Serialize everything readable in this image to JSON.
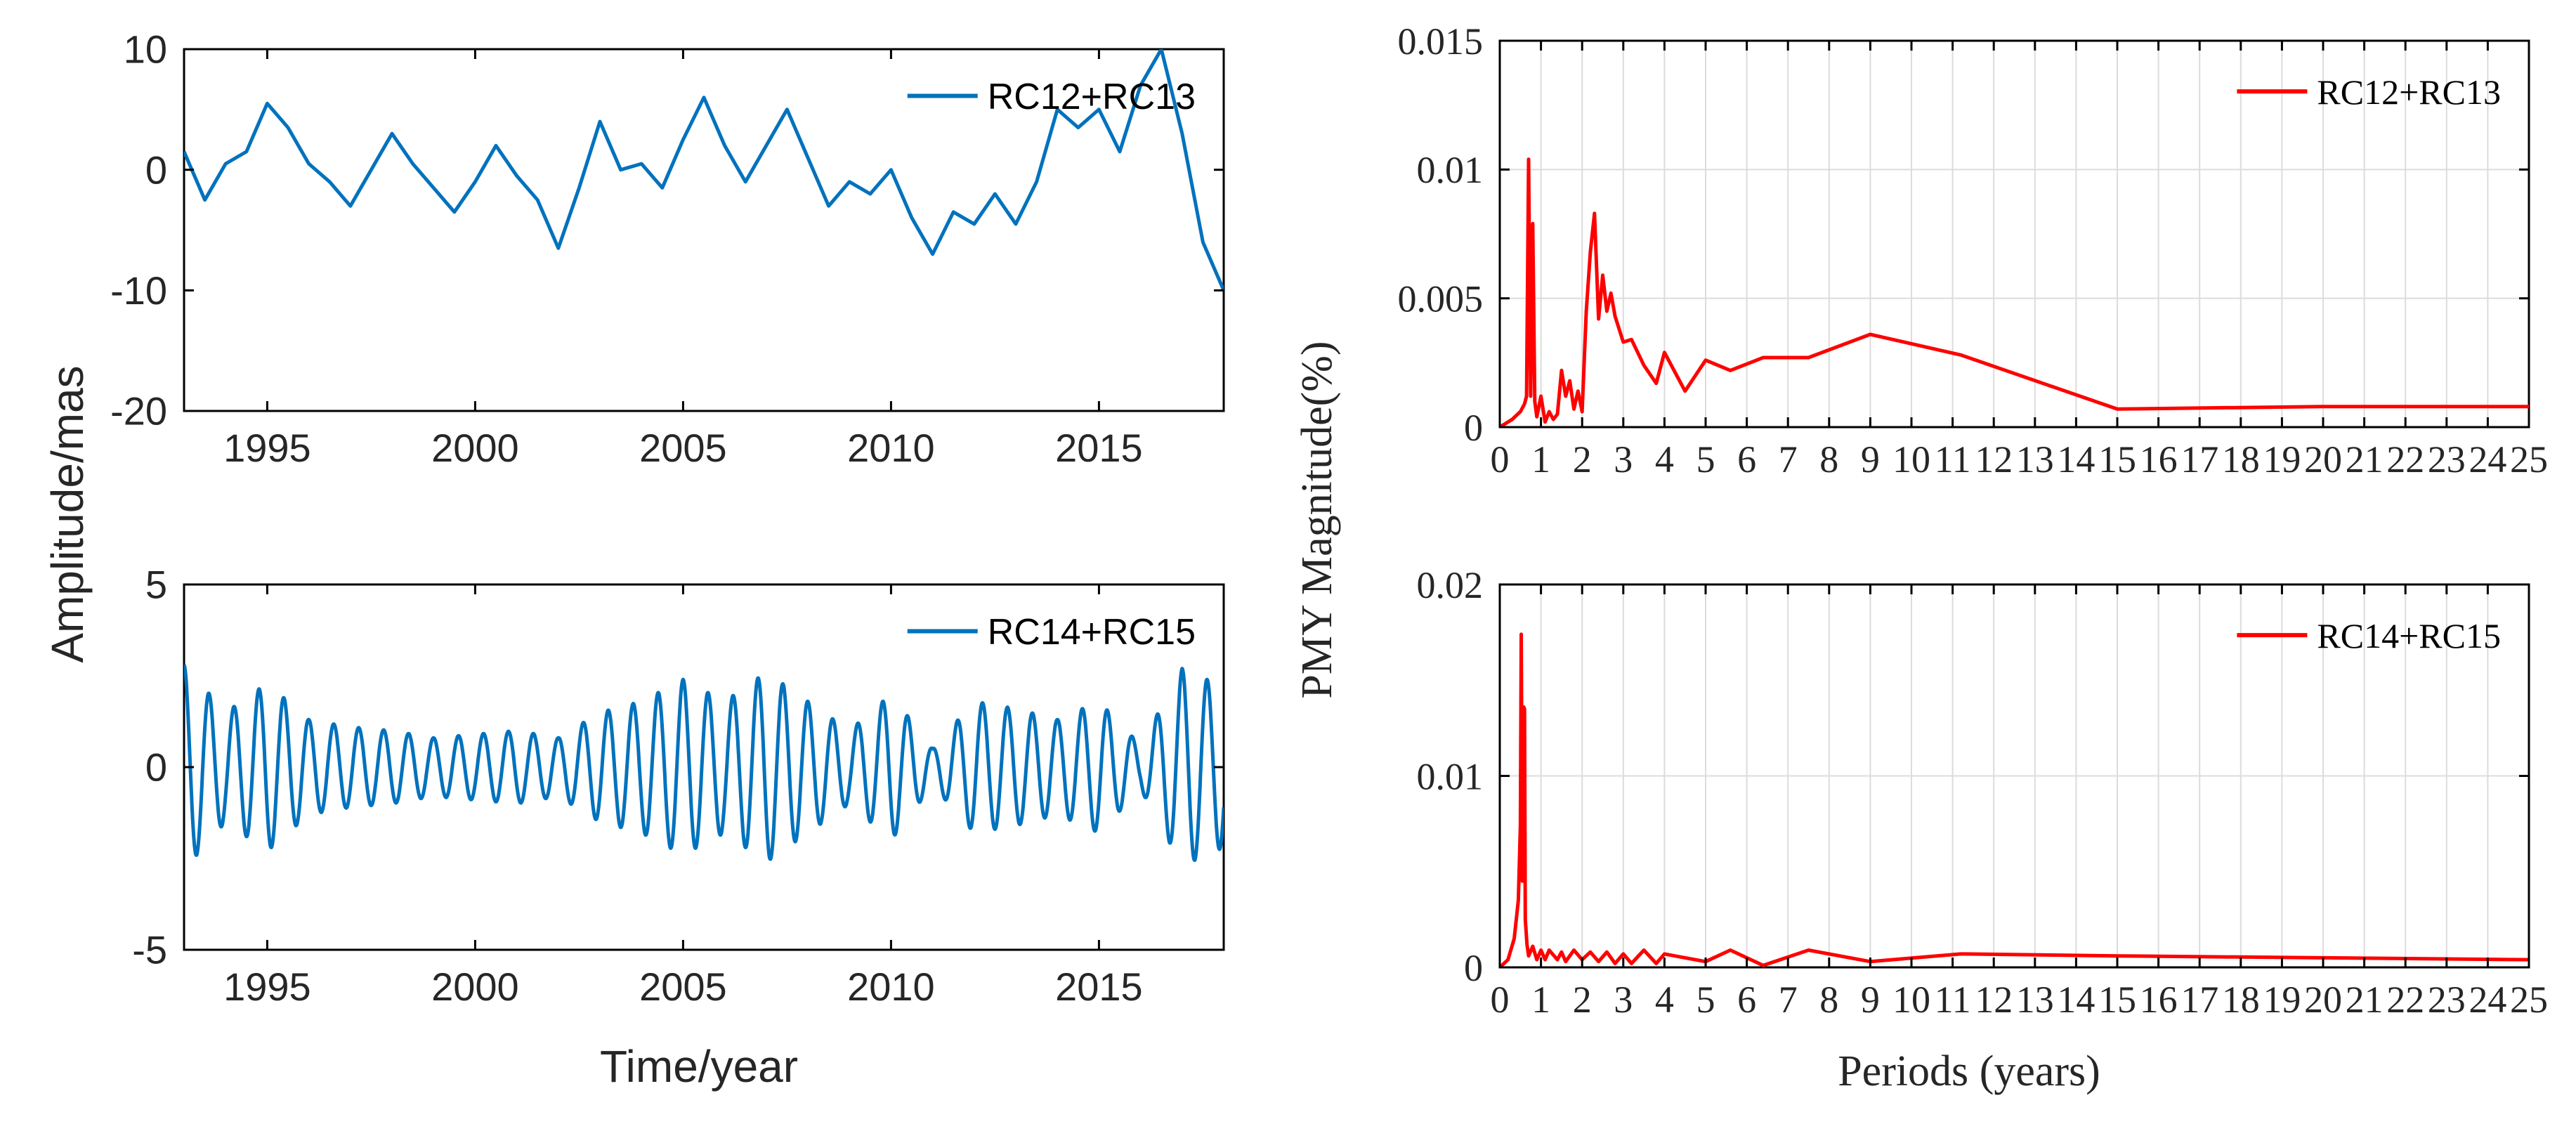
{
  "chart_data": [
    {
      "type": "line",
      "panel": "top-left",
      "title": "",
      "xlabel": "",
      "ylabel": "",
      "xlim": [
        1993,
        2018
      ],
      "ylim": [
        -20,
        10
      ],
      "xticks": [
        1995,
        2000,
        2005,
        2010,
        2015
      ],
      "yticks": [
        -20,
        -10,
        0,
        10
      ],
      "grid": false,
      "legend_position": "top-right",
      "color": "#0072BD",
      "series": [
        {
          "name": "RC12+RC13",
          "x": [
            1993.0,
            1993.5,
            1994.0,
            1994.5,
            1995.0,
            1995.5,
            1996.0,
            1996.5,
            1997.0,
            1997.5,
            1998.0,
            1998.5,
            1999.0,
            1999.5,
            2000.0,
            2000.5,
            2001.0,
            2001.5,
            2002.0,
            2002.5,
            2003.0,
            2003.5,
            2004.0,
            2004.5,
            2005.0,
            2005.5,
            2006.0,
            2006.5,
            2007.0,
            2007.5,
            2008.0,
            2008.5,
            2009.0,
            2009.5,
            2010.0,
            2010.5,
            2011.0,
            2011.5,
            2012.0,
            2012.5,
            2013.0,
            2013.5,
            2014.0,
            2014.5,
            2015.0,
            2015.5,
            2016.0,
            2016.5,
            2017.0,
            2017.5,
            2018.0
          ],
          "values": [
            1.5,
            -2.5,
            0.5,
            1.5,
            5.5,
            3.5,
            0.5,
            -1.0,
            -3.0,
            0.0,
            3.0,
            0.5,
            -1.5,
            -3.5,
            -1.0,
            2.0,
            -0.5,
            -2.5,
            -6.5,
            -1.5,
            4.0,
            0.0,
            0.5,
            -1.5,
            2.5,
            6.0,
            2.0,
            -1.0,
            2.0,
            5.0,
            1.0,
            -3.0,
            -1.0,
            -2.0,
            0.0,
            -4.0,
            -7.0,
            -3.5,
            -4.5,
            -2.0,
            -4.5,
            -1.0,
            5.0,
            3.5,
            5.0,
            1.5,
            7.0,
            10.0,
            3.0,
            -6.0,
            -10.0
          ]
        }
      ]
    },
    {
      "type": "line",
      "panel": "bottom-left",
      "title": "",
      "xlabel": "Time/year",
      "ylabel": "",
      "shared_ylabel": "Amplitude/mas",
      "xlim": [
        1993,
        2018
      ],
      "ylim": [
        -5,
        5
      ],
      "xticks": [
        1995,
        2000,
        2005,
        2010,
        2015
      ],
      "yticks": [
        -5,
        0,
        5
      ],
      "grid": false,
      "legend_position": "top-right",
      "color": "#0072BD",
      "series": [
        {
          "name": "RC14+RC15",
          "period_years": 0.6,
          "envelope": {
            "x": [
              1993.0,
              1994.0,
              1995.0,
              1996.0,
              1997.0,
              1998.0,
              1999.0,
              2000.0,
              2001.0,
              2002.0,
              2003.0,
              2004.0,
              2005.0,
              2006.0,
              2007.0,
              2008.0,
              2009.0,
              2010.0,
              2011.0,
              2012.0,
              2013.0,
              2014.0,
              2015.0,
              2016.0,
              2017.0,
              2018.0
            ],
            "values": [
              2.8,
              1.5,
              2.3,
              1.3,
              1.1,
              1.0,
              0.8,
              0.9,
              1.0,
              0.8,
              1.5,
              1.8,
              2.4,
              1.8,
              2.6,
              1.8,
              1.0,
              2.0,
              0.5,
              1.8,
              1.6,
              1.3,
              1.8,
              0.6,
              2.7,
              2.2
            ]
          }
        }
      ]
    },
    {
      "type": "line",
      "panel": "top-right",
      "title": "",
      "xlabel": "",
      "ylabel": "",
      "xlim": [
        0,
        25
      ],
      "ylim": [
        0,
        0.015
      ],
      "xticks": [
        0,
        1,
        2,
        3,
        4,
        5,
        6,
        7,
        8,
        9,
        10,
        11,
        12,
        13,
        14,
        15,
        16,
        17,
        18,
        19,
        20,
        21,
        22,
        23,
        24,
        25
      ],
      "yticks": [
        0,
        0.005,
        0.01,
        0.015
      ],
      "ytick_labels": [
        "0",
        "0.005",
        "0.01",
        "0.015"
      ],
      "grid": true,
      "legend_position": "top-right",
      "color": "#FF0000",
      "series": [
        {
          "name": "RC12+RC13",
          "x": [
            0.0,
            0.3,
            0.5,
            0.6,
            0.65,
            0.7,
            0.75,
            0.8,
            0.85,
            0.9,
            1.0,
            1.1,
            1.2,
            1.3,
            1.4,
            1.5,
            1.6,
            1.7,
            1.8,
            1.9,
            2.0,
            2.1,
            2.2,
            2.3,
            2.4,
            2.5,
            2.6,
            2.7,
            2.8,
            3.0,
            3.2,
            3.5,
            3.8,
            4.0,
            4.5,
            5.0,
            5.6,
            6.4,
            7.5,
            9.0,
            11.2,
            15.0,
            20.0,
            25.0
          ],
          "values": [
            0.0,
            0.0003,
            0.0006,
            0.0009,
            0.0012,
            0.0104,
            0.0012,
            0.0079,
            0.001,
            0.0004,
            0.0012,
            0.0002,
            0.0006,
            0.0003,
            0.0005,
            0.0022,
            0.0012,
            0.0018,
            0.0007,
            0.0014,
            0.0006,
            0.0045,
            0.0068,
            0.0083,
            0.0042,
            0.0059,
            0.0045,
            0.0052,
            0.0043,
            0.0033,
            0.0034,
            0.0024,
            0.0017,
            0.0029,
            0.0014,
            0.0026,
            0.0022,
            0.0027,
            0.0027,
            0.0036,
            0.0028,
            0.0007,
            0.0008,
            0.0008
          ]
        }
      ]
    },
    {
      "type": "line",
      "panel": "bottom-right",
      "title": "",
      "xlabel": "Periods (years)",
      "ylabel": "",
      "shared_ylabel": "PMY Magnitude(%)",
      "xlim": [
        0,
        25
      ],
      "ylim": [
        0,
        0.02
      ],
      "xticks": [
        0,
        1,
        2,
        3,
        4,
        5,
        6,
        7,
        8,
        9,
        10,
        11,
        12,
        13,
        14,
        15,
        16,
        17,
        18,
        19,
        20,
        21,
        22,
        23,
        24,
        25
      ],
      "yticks": [
        0,
        0.01,
        0.02
      ],
      "ytick_labels": [
        "0",
        "0.01",
        "0.02"
      ],
      "grid": true,
      "legend_position": "top-right",
      "color": "#FF0000",
      "series": [
        {
          "name": "RC14+RC15",
          "x": [
            0.0,
            0.2,
            0.35,
            0.45,
            0.5,
            0.52,
            0.55,
            0.58,
            0.6,
            0.62,
            0.66,
            0.7,
            0.8,
            0.9,
            1.0,
            1.1,
            1.2,
            1.4,
            1.5,
            1.6,
            1.8,
            2.0,
            2.2,
            2.4,
            2.6,
            2.8,
            3.0,
            3.2,
            3.5,
            3.8,
            4.0,
            4.5,
            5.0,
            5.6,
            6.4,
            7.5,
            9.0,
            11.2,
            15.0,
            20.0,
            25.0
          ],
          "values": [
            0.0,
            0.0004,
            0.0015,
            0.0035,
            0.0074,
            0.0174,
            0.0045,
            0.0136,
            0.0135,
            0.0025,
            0.0012,
            0.0006,
            0.0011,
            0.0004,
            0.0009,
            0.0004,
            0.0009,
            0.0004,
            0.0008,
            0.0003,
            0.0009,
            0.0004,
            0.0008,
            0.0003,
            0.0008,
            0.0002,
            0.0007,
            0.0002,
            0.0009,
            0.0002,
            0.0007,
            0.0005,
            0.0003,
            0.0009,
            0.0001,
            0.0009,
            0.0003,
            0.0007,
            0.0006,
            0.0005,
            0.0004
          ]
        }
      ]
    }
  ]
}
